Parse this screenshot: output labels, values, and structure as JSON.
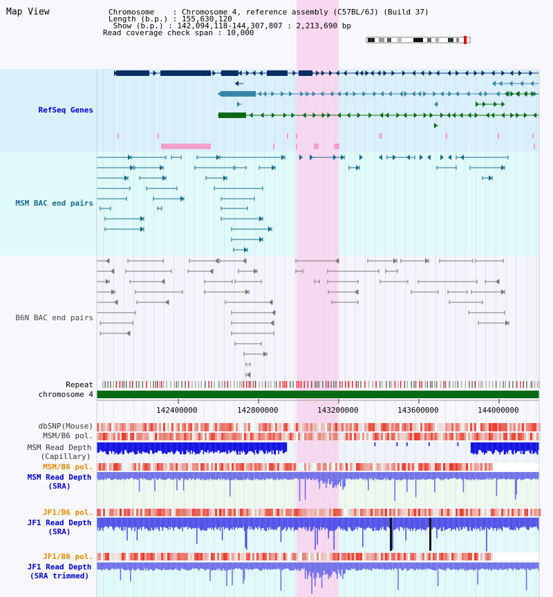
{
  "header": {
    "title": "Map View",
    "info_lines": [
      "Chromosome    : Chromosome 4, reference assembly (C57BL/6J) (Build 37)",
      "Length (b.p.) : 155,630,120",
      " Show (b.p.) : 142,094,118-144,307,807 : 2,213,690 bp",
      "Read coverage check span : 10,000"
    ]
  },
  "tracks": {
    "refseq": "RefSeq Genes",
    "msm_bac": "MSM BAC end pairs",
    "b6n_bac": "B6N BAC end pairs",
    "repeat": "Repeat",
    "chromosome": "chromosome 4",
    "dbsnp": "dbSNP(Mouse)",
    "msm_b6_pol": "MSM/B6 pol.",
    "msm_depth_cap_1": "MSM Read Depth",
    "msm_depth_cap_2": "(Capillary)",
    "msm_b6_pol_2": "MSM/B6 pol.",
    "msm_depth_sra_1": "MSM Read Depth",
    "msm_depth_sra_2": "(SRA)",
    "jf1_b6_pol": "JF1/B6 pol.",
    "jf1_depth_sra_1": "JF1 Read Depth",
    "jf1_depth_sra_2": "(SRA)",
    "jf1_b6_pol_2": "JF1/B6 pol.",
    "jf1_depth_trim_1": "JF1 Read Depth",
    "jf1_depth_trim_2": "(SRA trimmed)"
  },
  "axis": {
    "ticks": [
      "142400000",
      "142800000",
      "143200000",
      "143600000",
      "144000000"
    ]
  },
  "colors": {
    "refseq_bg": "#daf0fa",
    "msm_bg": "#e0fafa",
    "b6n_bg": "#f4f4fa",
    "highlight": "#f8d8f0",
    "gene_dark": "#0a2e64",
    "gene_mid": "#3a86a8",
    "gene_green": "#0a6a14",
    "label_blue": "#0000cc",
    "label_orange": "#e08a00",
    "label_teal": "#1a6a8a"
  }
}
